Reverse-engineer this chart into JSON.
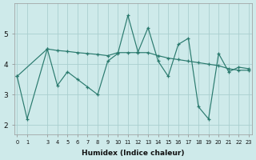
{
  "x_jagged": [
    0,
    1,
    3,
    4,
    5,
    6,
    7,
    8,
    9,
    10,
    11,
    12,
    13,
    14,
    15,
    16,
    17,
    18,
    19,
    20,
    21,
    22,
    23
  ],
  "y_jagged": [
    3.6,
    2.2,
    4.5,
    3.3,
    3.75,
    3.5,
    3.25,
    3.0,
    4.1,
    4.35,
    5.6,
    4.4,
    5.2,
    4.1,
    3.6,
    4.65,
    4.85,
    2.6,
    2.2,
    4.35,
    3.75,
    3.9,
    3.85
  ],
  "x_trend": [
    0,
    3,
    4,
    5,
    6,
    7,
    8,
    9,
    10,
    11,
    12,
    13,
    14,
    15,
    16,
    17,
    18,
    19,
    20,
    21,
    22,
    23
  ],
  "y_trend": [
    3.6,
    4.5,
    4.45,
    4.42,
    4.38,
    4.35,
    4.32,
    4.28,
    4.38,
    4.38,
    4.38,
    4.38,
    4.28,
    4.2,
    4.15,
    4.1,
    4.05,
    4.0,
    3.95,
    3.85,
    3.8,
    3.8
  ],
  "line_color": "#2a7a6e",
  "bg_color": "#ceeaea",
  "grid_color": "#aacfcf",
  "xlabel": "Humidex (Indice chaleur)",
  "yticks": [
    2,
    3,
    4,
    5
  ],
  "xticks": [
    0,
    1,
    3,
    4,
    5,
    6,
    7,
    8,
    9,
    10,
    11,
    12,
    13,
    14,
    15,
    16,
    17,
    18,
    19,
    20,
    21,
    22,
    23
  ],
  "ylim": [
    1.7,
    6.0
  ],
  "xlim": [
    -0.3,
    23.3
  ]
}
